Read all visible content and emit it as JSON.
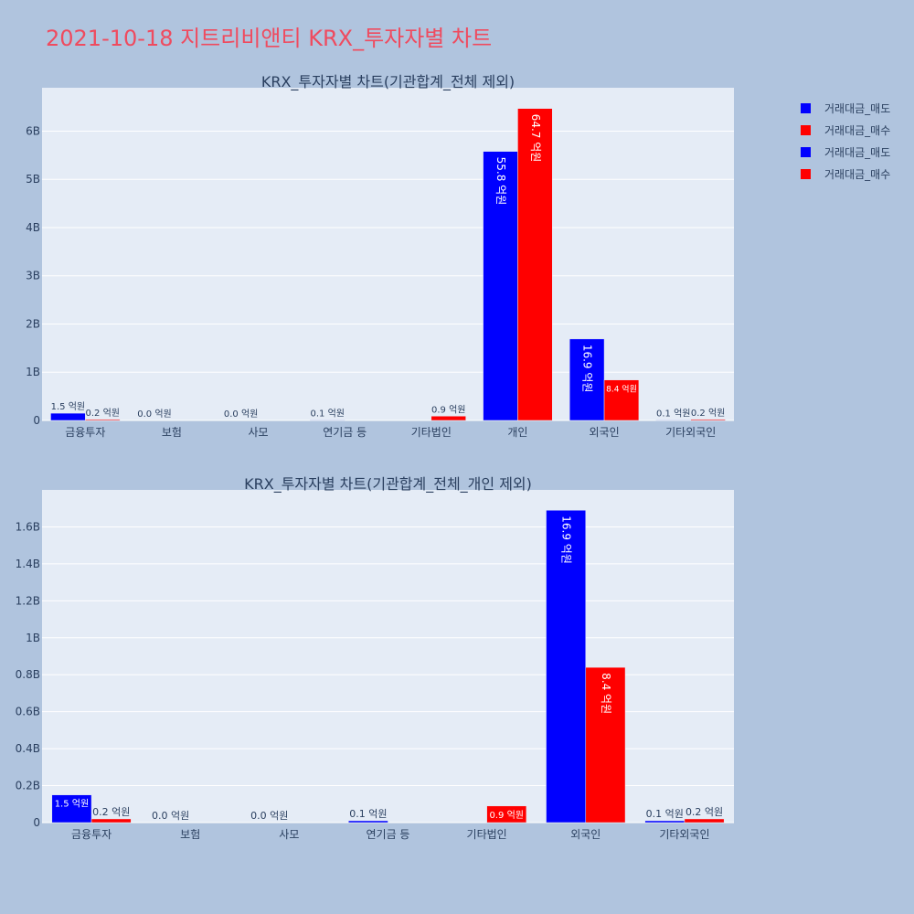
{
  "page": {
    "title": "2021-10-18 지트리비앤티 KRX_투자자별 차트"
  },
  "legend": {
    "items": [
      {
        "label": "거래대금_매도",
        "color": "#0000ff"
      },
      {
        "label": "거래대금_매수",
        "color": "#ff0000"
      },
      {
        "label": "거래대금_매도",
        "color": "#0000ff"
      },
      {
        "label": "거래대금_매수",
        "color": "#ff0000"
      }
    ]
  },
  "chart_data": [
    {
      "type": "bar",
      "title": "KRX_투자자별 차트(기관합계_전체 제외)",
      "categories": [
        "금융투자",
        "보험",
        "사모",
        "연기금 등",
        "기타법인",
        "개인",
        "외국인",
        "기타외국인"
      ],
      "ylim": [
        0,
        6900000000
      ],
      "yticks": [
        0,
        1000000000,
        2000000000,
        3000000000,
        4000000000,
        5000000000,
        6000000000
      ],
      "ytick_labels": [
        "0",
        "1B",
        "2B",
        "3B",
        "4B",
        "5B",
        "6B"
      ],
      "grid": true,
      "series": [
        {
          "name": "거래대금_매도",
          "color": "#0000ff",
          "values": [
            150000000,
            0,
            0,
            10000000,
            0,
            5580000000,
            1690000000,
            10000000
          ],
          "labels": [
            "1.5 억원",
            "0.0 억원",
            "0.0 억원",
            "0.1 억원",
            "",
            "55.8 억원",
            "16.9 억원",
            "0.1 억원"
          ]
        },
        {
          "name": "거래대금_매수",
          "color": "#ff0000",
          "values": [
            20000000,
            0,
            0,
            0,
            90000000,
            6470000000,
            840000000,
            20000000
          ],
          "labels": [
            "0.2 억원",
            "",
            "",
            "",
            "0.9 억원",
            "64.7 억원",
            "8.4 억원",
            "0.2 억원"
          ]
        }
      ]
    },
    {
      "type": "bar",
      "title": "KRX_투자자별 차트(기관합계_전체_개인 제외)",
      "categories": [
        "금융투자",
        "보험",
        "사모",
        "연기금 등",
        "기타법인",
        "외국인",
        "기타외국인"
      ],
      "ylim": [
        0,
        1800000000
      ],
      "yticks": [
        0,
        200000000,
        400000000,
        600000000,
        800000000,
        1000000000,
        1200000000,
        1400000000,
        1600000000
      ],
      "ytick_labels": [
        "0",
        "0.2B",
        "0.4B",
        "0.6B",
        "0.8B",
        "1B",
        "1.2B",
        "1.4B",
        "1.6B"
      ],
      "grid": true,
      "series": [
        {
          "name": "거래대금_매도",
          "color": "#0000ff",
          "values": [
            150000000,
            0,
            0,
            10000000,
            0,
            1690000000,
            10000000
          ],
          "labels": [
            "1.5 억원",
            "0.0 억원",
            "0.0 억원",
            "0.1 억원",
            "",
            "16.9 억원",
            "0.1 억원"
          ]
        },
        {
          "name": "거래대금_매수",
          "color": "#ff0000",
          "values": [
            20000000,
            0,
            0,
            0,
            90000000,
            840000000,
            20000000
          ],
          "labels": [
            "0.2 억원",
            "",
            "",
            "",
            "0.9 억원",
            "8.4 억원",
            "0.2 억원"
          ]
        }
      ]
    }
  ]
}
